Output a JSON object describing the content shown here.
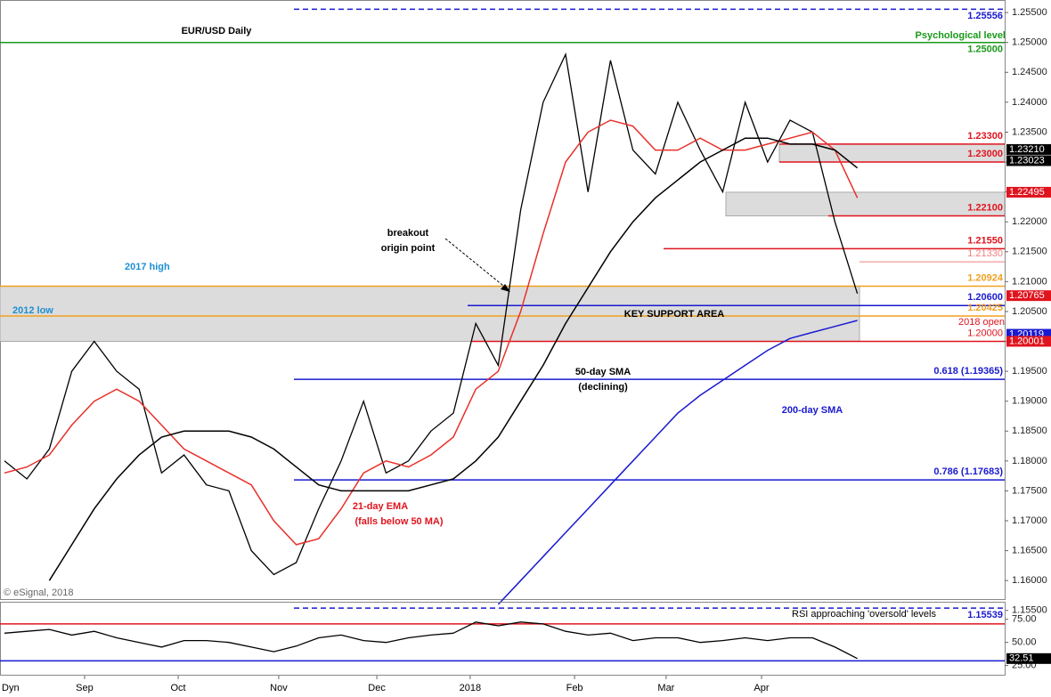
{
  "chart_data": [
    {
      "type": "line",
      "title": "EUR/USD Daily",
      "ylim": [
        1.1569,
        1.2571
      ],
      "yticks": [
        {
          "value": 1.155,
          "label": "1.15500"
        },
        {
          "value": 1.16,
          "label": "1.16000"
        },
        {
          "value": 1.165,
          "label": "1.16500"
        },
        {
          "value": 1.17,
          "label": "1.17000"
        },
        {
          "value": 1.175,
          "label": "1.17500"
        },
        {
          "value": 1.18,
          "label": "1.18000"
        },
        {
          "value": 1.185,
          "label": "1.18500"
        },
        {
          "value": 1.19,
          "label": "1.19000"
        },
        {
          "value": 1.195,
          "label": "1.19500"
        },
        {
          "value": 1.2,
          "label": "1.20000"
        },
        {
          "value": 1.205,
          "label": "1.20500"
        },
        {
          "value": 1.21,
          "label": "1.21000"
        },
        {
          "value": 1.215,
          "label": "1.21500"
        },
        {
          "value": 1.22,
          "label": "1.22000"
        },
        {
          "value": 1.225,
          "label": "1.22500"
        },
        {
          "value": 1.23,
          "label": "1.23000"
        },
        {
          "value": 1.235,
          "label": "1.23500"
        },
        {
          "value": 1.24,
          "label": "1.24000"
        },
        {
          "value": 1.245,
          "label": "1.24500"
        },
        {
          "value": 1.25,
          "label": "1.25000"
        },
        {
          "value": 1.255,
          "label": "1.25500"
        }
      ],
      "xticks": [
        {
          "value": 3.57,
          "label": "Sep"
        },
        {
          "value": 7.74,
          "label": "Oct"
        },
        {
          "value": 12.22,
          "label": "Nov"
        },
        {
          "value": 16.59,
          "label": "Dec"
        },
        {
          "value": 20.75,
          "label": "2018"
        },
        {
          "value": 25.4,
          "label": "Feb"
        },
        {
          "value": 29.48,
          "label": "Mar"
        },
        {
          "value": 33.73,
          "label": "Apr"
        }
      ],
      "series": [
        {
          "name": "EUR/USD",
          "color": "#000000",
          "values": [
            1.18,
            1.177,
            1.182,
            1.195,
            1.2,
            1.195,
            1.192,
            1.178,
            1.181,
            1.176,
            1.175,
            1.165,
            1.161,
            1.163,
            1.172,
            1.18,
            1.19,
            1.178,
            1.18,
            1.185,
            1.188,
            1.203,
            1.196,
            1.222,
            1.24,
            1.248,
            1.225,
            1.247,
            1.232,
            1.228,
            1.24,
            1.232,
            1.225,
            1.24,
            1.23,
            1.237,
            1.235,
            1.22,
            1.208
          ]
        },
        {
          "name": "21-day EMA",
          "color": "#e8302a",
          "values": [
            1.178,
            1.179,
            1.181,
            1.186,
            1.19,
            1.192,
            1.19,
            1.186,
            1.182,
            1.18,
            1.178,
            1.176,
            1.17,
            1.166,
            1.167,
            1.172,
            1.178,
            1.18,
            1.179,
            1.181,
            1.184,
            1.192,
            1.195,
            1.205,
            1.218,
            1.23,
            1.235,
            1.237,
            1.236,
            1.232,
            1.232,
            1.234,
            1.232,
            1.232,
            1.233,
            1.234,
            1.235,
            1.232,
            1.224
          ]
        },
        {
          "name": "50-day SMA",
          "color": "#000000",
          "values": [
            null,
            null,
            1.16,
            1.166,
            1.172,
            1.177,
            1.181,
            1.184,
            1.185,
            1.185,
            1.185,
            1.184,
            1.182,
            1.179,
            1.176,
            1.175,
            1.175,
            1.175,
            1.175,
            1.176,
            1.177,
            1.18,
            1.184,
            1.19,
            1.196,
            1.203,
            1.209,
            1.215,
            1.22,
            1.224,
            1.227,
            1.23,
            1.232,
            1.234,
            1.234,
            1.233,
            1.233,
            1.232,
            1.229
          ]
        },
        {
          "name": "200-day SMA",
          "color": "#1a1ad0",
          "values": [
            null,
            null,
            null,
            null,
            null,
            null,
            null,
            null,
            null,
            null,
            null,
            null,
            null,
            null,
            null,
            null,
            null,
            null,
            null,
            null,
            null,
            null,
            1.156,
            1.16,
            1.164,
            1.168,
            1.172,
            1.176,
            1.18,
            1.184,
            1.188,
            1.191,
            1.1935,
            1.196,
            1.1985,
            1.2005,
            1.2015,
            1.2025,
            1.2035
          ]
        }
      ],
      "levels": [
        {
          "value": 1.25556,
          "label": "1.25556",
          "color": "#1a1ad0",
          "dashed": true
        },
        {
          "value": 1.25,
          "label": "1.25000",
          "color": "#1a9a1a"
        },
        {
          "value": 1.233,
          "label": "1.23300",
          "color": "#e0141e"
        },
        {
          "value": 1.23,
          "label": "1.23000",
          "color": "#e0141e"
        },
        {
          "value": 1.221,
          "label": "1.22100",
          "color": "#e0141e"
        },
        {
          "value": 1.2155,
          "label": "1.21550",
          "color": "#e0141e"
        },
        {
          "value": 1.2133,
          "label": "1.21330",
          "color": "#f08080"
        },
        {
          "value": 1.20924,
          "label": "1.20924",
          "color": "#f0a020"
        },
        {
          "value": 1.206,
          "label": "1.20600",
          "color": "#1a1ad0"
        },
        {
          "value": 1.20425,
          "label": "1.20425",
          "color": "#f0a020"
        },
        {
          "value": 1.2,
          "label": "1.20000",
          "color": "#e0141e"
        },
        {
          "value": 1.19365,
          "label": "0.618 (1.19365)",
          "color": "#1a1ad0"
        },
        {
          "value": 1.17683,
          "label": "0.786 (1.17683)",
          "color": "#1a1ad0"
        },
        {
          "value": 1.15539,
          "label": "1.15539",
          "color": "#1a1ad0",
          "dashed": true
        }
      ],
      "axis_markers": [
        {
          "value": 1.2321,
          "label": "1.23210",
          "color": "#000000"
        },
        {
          "value": 1.23023,
          "label": "1.23023",
          "color": "#000000"
        },
        {
          "value": 1.22495,
          "label": "1.22495",
          "color": "#e0141e"
        },
        {
          "value": 1.20765,
          "label": "1.20765",
          "color": "#e0141e"
        },
        {
          "value": 1.20119,
          "label": "1.20119",
          "color": "#1a1ad0"
        },
        {
          "value": 1.20001,
          "label": "1.20001",
          "color": "#e0141e"
        }
      ],
      "annotations": [
        "2017 high",
        "2012 low",
        "breakout",
        "origin point",
        "KEY SUPPORT AREA",
        "50-day SMA",
        "(declining)",
        "200-day SMA",
        "21-day EMA",
        "(falls below 50 MA)",
        "Psychological level",
        "2018 open",
        "© eSignal, 2018",
        "Dyn"
      ]
    },
    {
      "type": "line",
      "title": "RSI approaching 'oversold' levels",
      "ylim": [
        15,
        94
      ],
      "yticks": [
        {
          "value": 25,
          "label": "25.00"
        },
        {
          "value": 50,
          "label": "50.00"
        },
        {
          "value": 75,
          "label": "75.00"
        }
      ],
      "levels": [
        {
          "value": 70,
          "color": "#e0141e"
        },
        {
          "value": 30,
          "color": "#1a1ad0"
        }
      ],
      "series": [
        {
          "name": "RSI",
          "color": "#000000",
          "values": [
            60,
            62,
            64,
            58,
            62,
            55,
            50,
            45,
            52,
            52,
            50,
            45,
            40,
            46,
            55,
            58,
            52,
            50,
            55,
            58,
            60,
            72,
            68,
            72,
            70,
            62,
            58,
            60,
            52,
            55,
            55,
            50,
            52,
            55,
            52,
            55,
            55,
            45,
            32.51
          ],
          "value_labels": [
            null,
            null,
            null,
            null,
            null,
            null,
            null,
            null,
            null,
            null,
            null,
            null,
            null,
            null,
            null,
            null,
            null,
            null,
            null,
            null,
            null,
            null,
            null,
            null,
            null,
            null,
            null,
            null,
            null,
            null,
            null,
            null,
            null,
            null,
            null,
            null,
            null,
            null,
            "32.51"
          ]
        }
      ]
    }
  ]
}
